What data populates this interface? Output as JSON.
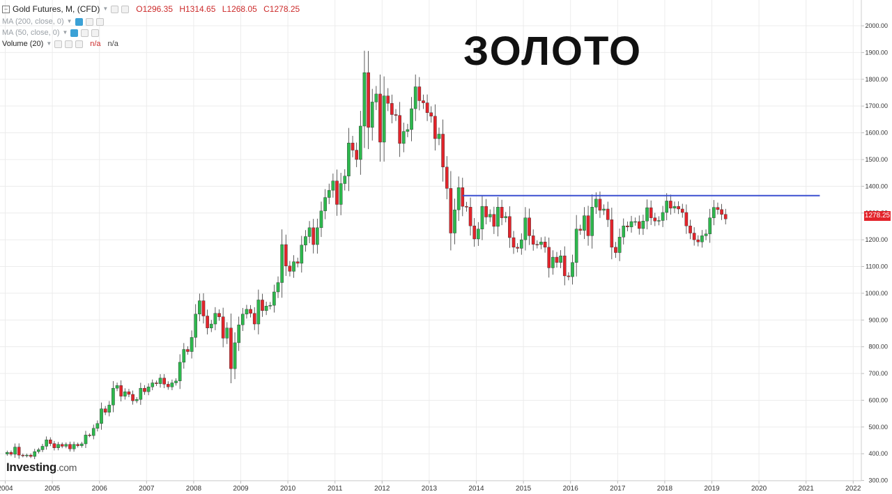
{
  "legend": {
    "symbol": "Gold Futures, M, (CFD)",
    "open": "O1296.35",
    "high": "H1314.65",
    "low": "L1268.05",
    "close": "C1278.25",
    "ma200": "MA (200, close, 0)",
    "ma50": "MA (50, close, 0)",
    "volume": "Volume (20)",
    "na1": "n/a",
    "na2": "n/a"
  },
  "overlay_title": "ЗОЛОТО",
  "logo": {
    "brand": "Investing",
    "suffix": ".com"
  },
  "current_price": "1278.25",
  "colors": {
    "up": "#2db84d",
    "down": "#e3242b",
    "resistance": "#3a4fd0",
    "grid": "#ececec"
  },
  "chart_data": {
    "type": "candlestick",
    "interval": "monthly",
    "x_axis_years": [
      "2004",
      "2005",
      "2006",
      "2007",
      "2008",
      "2009",
      "2010",
      "2011",
      "2012",
      "2013",
      "2014",
      "2015",
      "2016",
      "2017",
      "2018",
      "2019",
      "2020",
      "2021",
      "2022"
    ],
    "y_ticks": [
      "300.00",
      "400.00",
      "500.00",
      "600.00",
      "700.00",
      "800.00",
      "900.00",
      "1000.00",
      "1100.00",
      "1200.00",
      "1300.00",
      "1400.00",
      "1500.00",
      "1600.00",
      "1700.00",
      "1800.00",
      "1900.00",
      "2000.00"
    ],
    "ylim": [
      280,
      2060
    ],
    "start": "2004-01",
    "closes": [
      405,
      398,
      425,
      395,
      392,
      395,
      390,
      408,
      415,
      428,
      452,
      438,
      422,
      435,
      428,
      435,
      418,
      435,
      430,
      437,
      470,
      468,
      495,
      513,
      568,
      555,
      582,
      645,
      655,
      615,
      632,
      622,
      598,
      603,
      645,
      632,
      650,
      665,
      662,
      683,
      660,
      650,
      665,
      672,
      742,
      790,
      782,
      835,
      922,
      972,
      915,
      870,
      885,
      925,
      912,
      832,
      870,
      718,
      815,
      882,
      922,
      940,
      925,
      885,
      975,
      935,
      952,
      955,
      1005,
      1040,
      1182,
      1102,
      1082,
      1118,
      1112,
      1180,
      1212,
      1245,
      1182,
      1245,
      1308,
      1358,
      1385,
      1420,
      1332,
      1410,
      1438,
      1562,
      1535,
      1500,
      1625,
      1825,
      1620,
      1715,
      1745,
      1565,
      1738,
      1710,
      1668,
      1665,
      1560,
      1605,
      1612,
      1690,
      1772,
      1720,
      1712,
      1675,
      1662,
      1578,
      1595,
      1472,
      1392,
      1225,
      1312,
      1395,
      1325,
      1322,
      1252,
      1203,
      1240,
      1325,
      1285,
      1295,
      1250,
      1322,
      1282,
      1287,
      1208,
      1172,
      1168,
      1200,
      1282,
      1215,
      1183,
      1182,
      1192,
      1172,
      1095,
      1135,
      1115,
      1140,
      1065,
      1062,
      1115,
      1240,
      1235,
      1290,
      1215,
      1322,
      1352,
      1310,
      1315,
      1275,
      1172,
      1152,
      1210,
      1252,
      1248,
      1268,
      1268,
      1242,
      1270,
      1320,
      1282,
      1270,
      1272,
      1302,
      1345,
      1318,
      1325,
      1315,
      1302,
      1252,
      1225,
      1200,
      1192,
      1215,
      1222,
      1282,
      1321,
      1313,
      1295,
      1278
    ],
    "resistance_level": 1365,
    "resistance_from": "2013-09",
    "resistance_to": "2021-04",
    "last_price": 1278.25
  }
}
